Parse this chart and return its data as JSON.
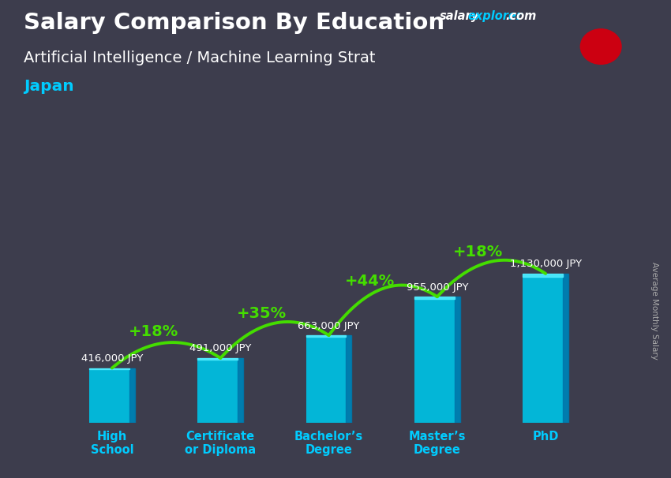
{
  "title": "Salary Comparison By Education",
  "subtitle": "Artificial Intelligence / Machine Learning Strat",
  "country": "Japan",
  "ylabel": "Average Monthly Salary",
  "categories": [
    "High\nSchool",
    "Certificate\nor Diploma",
    "Bachelor’s\nDegree",
    "Master’s\nDegree",
    "PhD"
  ],
  "values": [
    416000,
    491000,
    663000,
    955000,
    1130000
  ],
  "value_labels": [
    "416,000 JPY",
    "491,000 JPY",
    "663,000 JPY",
    "955,000 JPY",
    "1,130,000 JPY"
  ],
  "pct_labels": [
    "+18%",
    "+35%",
    "+44%",
    "+18%"
  ],
  "bar_color_top": "#00d4f5",
  "bar_color_bot": "#007bb5",
  "pct_color": "#44dd00",
  "title_color": "#ffffff",
  "subtitle_color": "#ffffff",
  "country_color": "#00ccff",
  "value_label_color": "#ffffff",
  "bg_dark": "#3a3a4a",
  "ylabel_color": "#aaaaaa",
  "site_salary_color": "#ffffff",
  "site_explorer_color": "#00ccff",
  "bar_width": 0.42,
  "ylim_max": 1500000
}
